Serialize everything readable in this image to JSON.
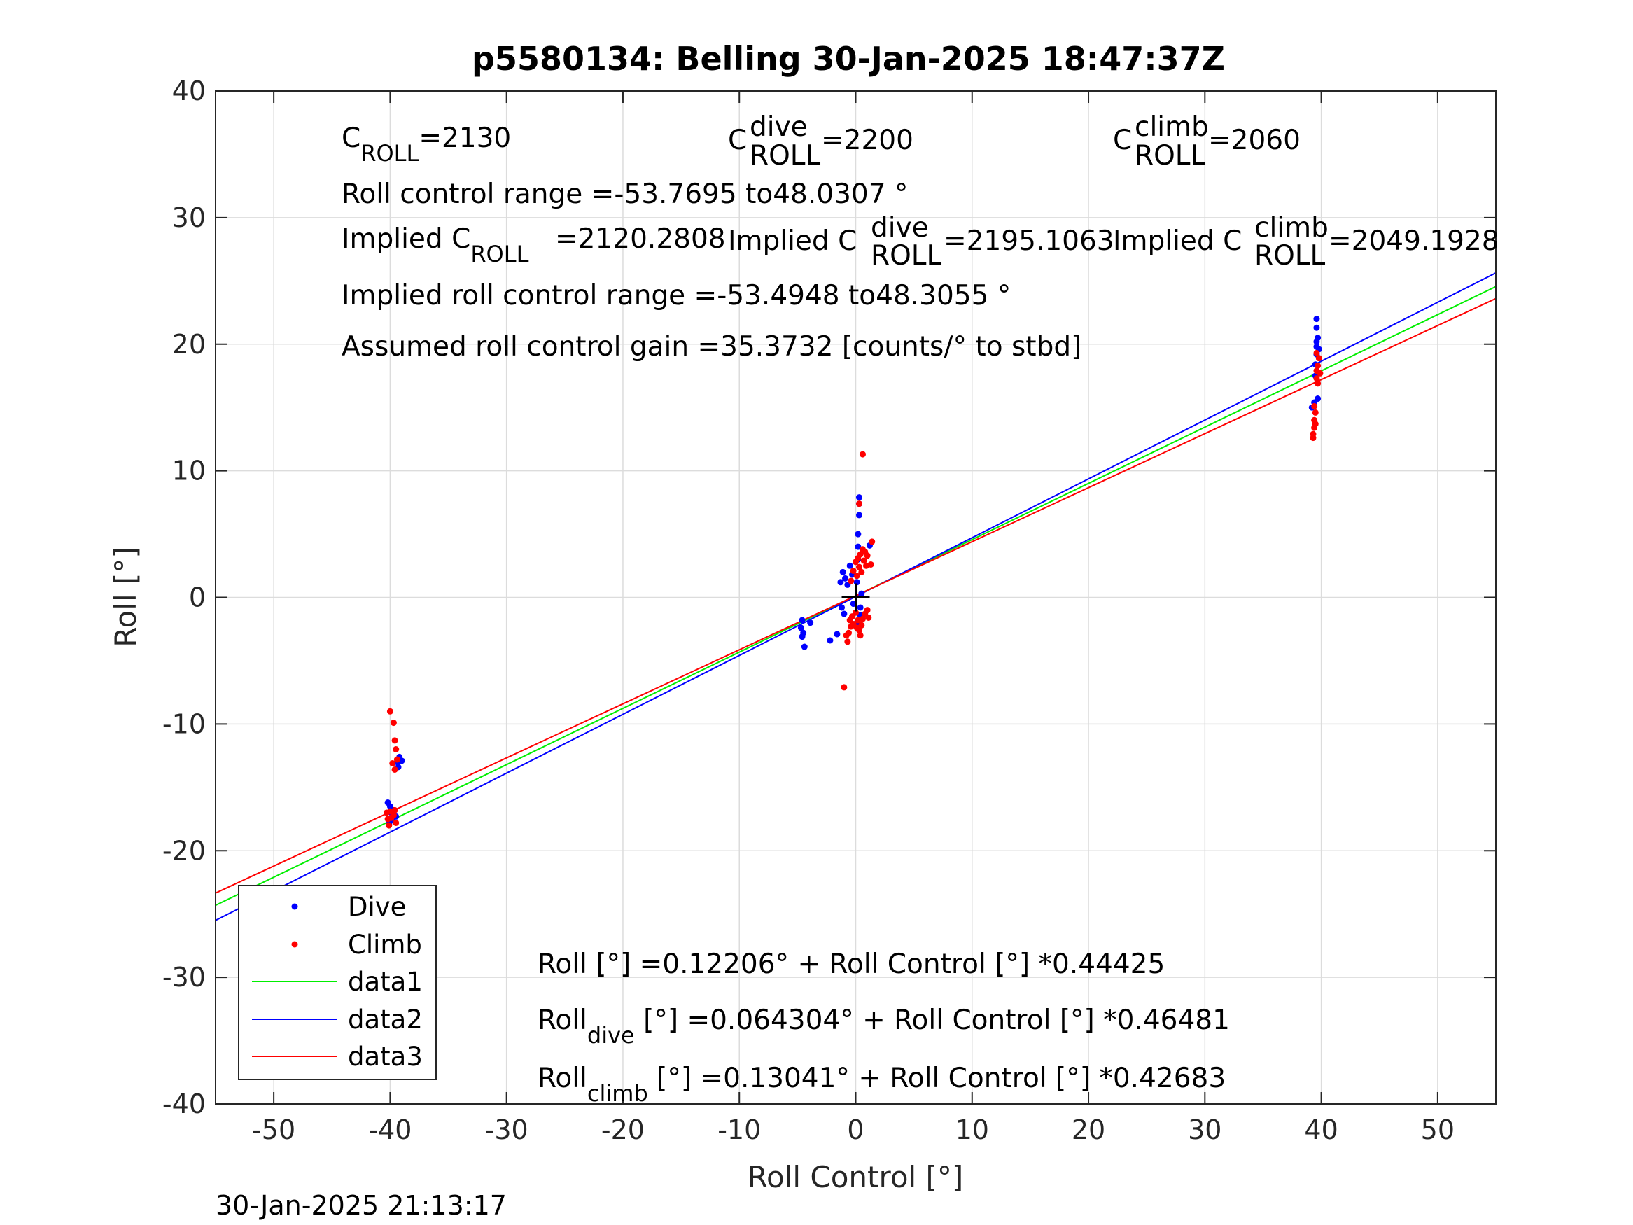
{
  "chart_data": {
    "type": "scatter",
    "title": "p5580134: Belling 30-Jan-2025 18:47:37Z",
    "xlabel": "Roll Control [°]",
    "ylabel": "Roll [°]",
    "xlim": [
      -55,
      55
    ],
    "ylim": [
      -40,
      40
    ],
    "x_ticks": [
      -50,
      -40,
      -30,
      -20,
      -10,
      0,
      10,
      20,
      30,
      40,
      50
    ],
    "y_ticks": [
      -40,
      -30,
      -20,
      -10,
      0,
      10,
      20,
      30,
      40
    ],
    "grid": true,
    "legend_position": "bottom-left",
    "series": [
      {
        "name": "Dive",
        "kind": "points",
        "color": "#0000ff",
        "points": [
          [
            -40.2,
            -16.2
          ],
          [
            -40.0,
            -16.5
          ],
          [
            -39.9,
            -17.0
          ],
          [
            -39.7,
            -16.8
          ],
          [
            -39.5,
            -17.3
          ],
          [
            -39.8,
            -17.6
          ],
          [
            -40.1,
            -17.9
          ],
          [
            -39.4,
            -13.0
          ],
          [
            -39.2,
            -12.6
          ],
          [
            -39.3,
            -13.4
          ],
          [
            -39.0,
            -12.9
          ],
          [
            -4.6,
            -1.8
          ],
          [
            -4.7,
            -2.4
          ],
          [
            -4.5,
            -2.8
          ],
          [
            -4.6,
            -3.1
          ],
          [
            -4.4,
            -3.9
          ],
          [
            -3.9,
            -2.0
          ],
          [
            -2.2,
            -3.4
          ],
          [
            -1.6,
            -2.9
          ],
          [
            -1.2,
            -0.8
          ],
          [
            -1.0,
            -1.3
          ],
          [
            -1.3,
            1.2
          ],
          [
            -1.1,
            2.0
          ],
          [
            -0.9,
            1.5
          ],
          [
            -0.7,
            1.0
          ],
          [
            -0.5,
            2.5
          ],
          [
            -0.3,
            1.8
          ],
          [
            -0.2,
            -0.5
          ],
          [
            0.1,
            1.2
          ],
          [
            0.2,
            3.0
          ],
          [
            0.2,
            4.0
          ],
          [
            0.2,
            5.0
          ],
          [
            0.3,
            6.5
          ],
          [
            0.3,
            7.4
          ],
          [
            0.3,
            7.9
          ],
          [
            0.4,
            -0.8
          ],
          [
            0.4,
            -1.4
          ],
          [
            0.5,
            0.3
          ],
          [
            0.1,
            -2.0
          ],
          [
            1.2,
            4.1
          ],
          [
            39.2,
            15.0
          ],
          [
            39.4,
            15.4
          ],
          [
            39.5,
            17.5
          ],
          [
            39.5,
            18.4
          ],
          [
            39.6,
            19.2
          ],
          [
            39.6,
            19.8
          ],
          [
            39.6,
            20.2
          ],
          [
            39.7,
            20.5
          ],
          [
            39.6,
            21.3
          ],
          [
            39.6,
            22.0
          ],
          [
            39.7,
            15.7
          ],
          [
            39.8,
            19.6
          ]
        ]
      },
      {
        "name": "Climb",
        "kind": "points",
        "color": "#ff0000",
        "points": [
          [
            -40.3,
            -17.0
          ],
          [
            -40.2,
            -17.5
          ],
          [
            -40.1,
            -18.0
          ],
          [
            -40.0,
            -16.9
          ],
          [
            -39.9,
            -17.4
          ],
          [
            -39.7,
            -17.2
          ],
          [
            -39.6,
            -16.8
          ],
          [
            -39.5,
            -17.8
          ],
          [
            -40.0,
            -9.0
          ],
          [
            -39.7,
            -9.9
          ],
          [
            -39.6,
            -11.3
          ],
          [
            -39.5,
            -12.0
          ],
          [
            -39.4,
            -12.8
          ],
          [
            -39.8,
            -13.1
          ],
          [
            -39.6,
            -13.6
          ],
          [
            -1.0,
            -7.1
          ],
          [
            -0.8,
            -3.0
          ],
          [
            -0.7,
            -3.5
          ],
          [
            -0.6,
            -2.8
          ],
          [
            -0.5,
            -1.8
          ],
          [
            -0.4,
            -2.3
          ],
          [
            -0.3,
            -1.5
          ],
          [
            -0.2,
            -2.1
          ],
          [
            0.0,
            -1.2
          ],
          [
            0.1,
            -2.4
          ],
          [
            0.2,
            -1.8
          ],
          [
            0.3,
            -2.6
          ],
          [
            0.4,
            -3.0
          ],
          [
            0.5,
            -2.2
          ],
          [
            0.6,
            -1.7
          ],
          [
            0.8,
            -1.3
          ],
          [
            1.0,
            -1.0
          ],
          [
            1.1,
            -1.6
          ],
          [
            -0.4,
            1.3
          ],
          [
            -0.2,
            2.1
          ],
          [
            0.0,
            2.8
          ],
          [
            0.1,
            1.7
          ],
          [
            0.2,
            3.1
          ],
          [
            0.3,
            2.4
          ],
          [
            0.4,
            3.4
          ],
          [
            0.5,
            2.0
          ],
          [
            0.6,
            3.8
          ],
          [
            0.7,
            2.9
          ],
          [
            0.8,
            3.6
          ],
          [
            0.9,
            2.5
          ],
          [
            1.0,
            3.3
          ],
          [
            1.3,
            2.6
          ],
          [
            1.4,
            4.4
          ],
          [
            0.6,
            11.3
          ],
          [
            0.3,
            7.4
          ],
          [
            39.3,
            12.9
          ],
          [
            39.4,
            13.4
          ],
          [
            39.4,
            14.0
          ],
          [
            39.5,
            14.6
          ],
          [
            39.4,
            15.1
          ],
          [
            39.6,
            17.3
          ],
          [
            39.6,
            17.9
          ],
          [
            39.7,
            18.3
          ],
          [
            39.8,
            18.9
          ],
          [
            39.6,
            19.3
          ],
          [
            39.9,
            17.7
          ],
          [
            39.7,
            16.9
          ],
          [
            39.3,
            12.6
          ],
          [
            39.5,
            13.7
          ]
        ]
      },
      {
        "name": "data1",
        "kind": "line",
        "color": "#00ee00",
        "intercept": 0.12206,
        "slope": 0.44425
      },
      {
        "name": "data2",
        "kind": "line",
        "color": "#0000ff",
        "intercept": 0.064304,
        "slope": 0.46481
      },
      {
        "name": "data3",
        "kind": "line",
        "color": "#ff0000",
        "intercept": 0.13041,
        "slope": 0.42683
      }
    ],
    "marker": {
      "x": 0,
      "y": 0,
      "symbol": "+"
    },
    "annotations": {
      "c_roll": "=2130",
      "c_dive": "=2200",
      "c_climb": "=2060",
      "range": "Roll control range =-53.7695 to48.0307 °",
      "implied": "Implied C",
      "implied_c_roll": "=2120.2808",
      "implied_c_dive": "=2195.1063",
      "implied_c_climb": "=2049.1928",
      "implied_range": "Implied roll control range =-53.4948 to48.3055 °",
      "gain": "Assumed roll control gain =35.3732 [counts/° to stbd]",
      "fit_all": "Roll [°] =0.12206° + Roll Control [°] *0.44425",
      "fit_dive": " [°] =0.064304° + Roll Control [°] *0.46481",
      "fit_climb": " [°] =0.13041° + Roll Control [°] *0.42683",
      "roll_word": "Roll",
      "c_letter": "C",
      "sub_roll": "ROLL",
      "sub_dive": "dive",
      "sub_climb": "climb",
      "sup_dive": "dive",
      "sup_climb": "climb"
    },
    "timestamp": "30-Jan-2025 21:13:17"
  }
}
